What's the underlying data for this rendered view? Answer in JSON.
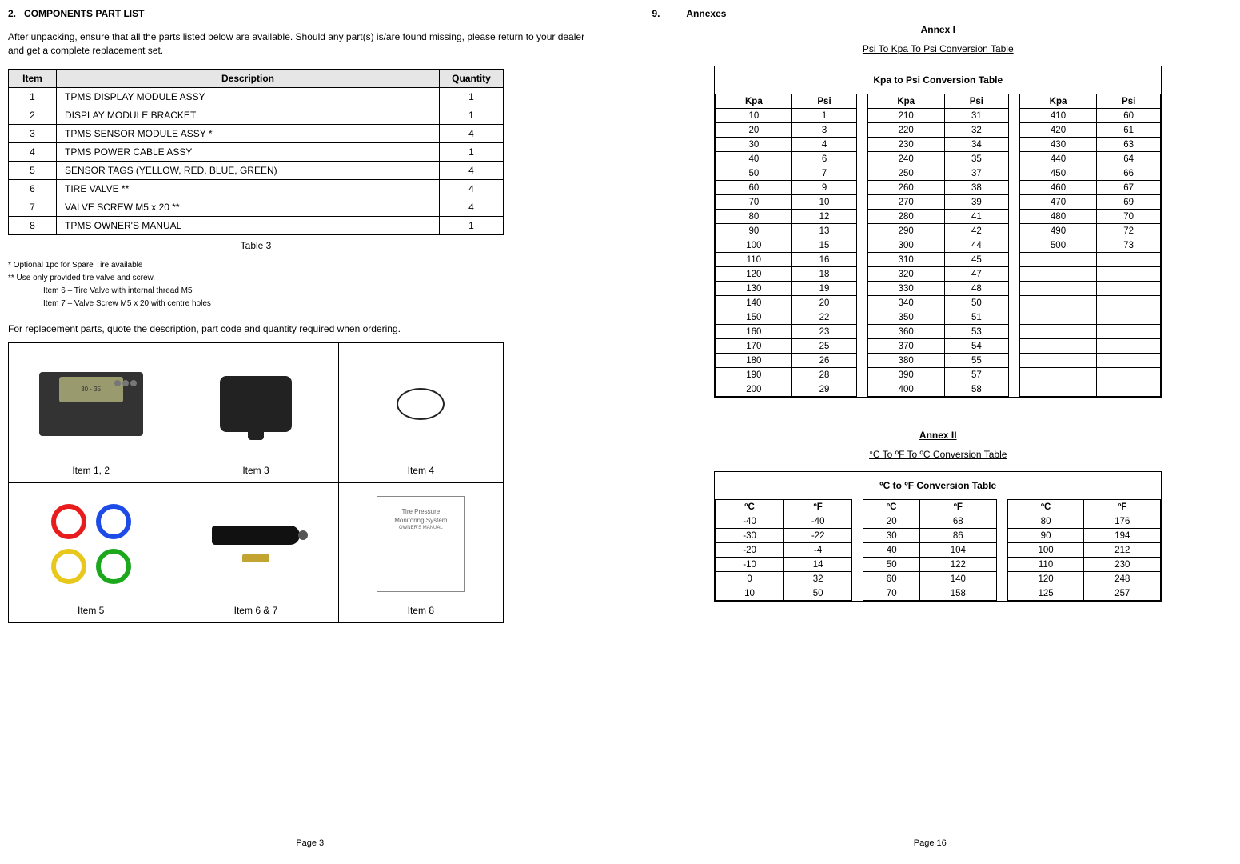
{
  "left": {
    "section_number": "2.",
    "section_title": "COMPONENTS PART LIST",
    "intro": "After unpacking, ensure that all the parts listed below are available. Should any part(s) is/are found missing, please return to your dealer and get a complete replacement set.",
    "parts_table": {
      "headers": {
        "item": "Item",
        "description": "Description",
        "quantity": "Quantity"
      },
      "rows": [
        {
          "item": "1",
          "description": "TPMS DISPLAY MODULE ASSY",
          "quantity": "1"
        },
        {
          "item": "2",
          "description": "DISPLAY MODULE BRACKET",
          "quantity": "1"
        },
        {
          "item": "3",
          "description": "TPMS SENSOR MODULE ASSY *",
          "quantity": "4"
        },
        {
          "item": "4",
          "description": "TPMS POWER CABLE ASSY",
          "quantity": "1"
        },
        {
          "item": "5",
          "description": "SENSOR TAGS (YELLOW, RED, BLUE, GREEN)",
          "quantity": "4"
        },
        {
          "item": "6",
          "description": "TIRE VALVE **",
          "quantity": "4"
        },
        {
          "item": "7",
          "description": "VALVE SCREW M5 x 20 **",
          "quantity": "4"
        },
        {
          "item": "8",
          "description": "TPMS OWNER'S MANUAL",
          "quantity": "1"
        }
      ],
      "caption": "Table 3"
    },
    "footnotes": {
      "f1": "* Optional 1pc for Spare Tire available",
      "f2": "** Use only provided tire valve and screw.",
      "f3": "Item 6 – Tire Valve with internal thread M5",
      "f4": "Item 7 – Valve Screw M5 x 20 with centre holes"
    },
    "order_text": "For replacement parts, quote the description, part code and quantity required when ordering.",
    "image_labels": {
      "i12": "Item 1, 2",
      "i3": "Item 3",
      "i4": "Item 4",
      "i5": "Item 5",
      "i67": "Item 6 & 7",
      "i8": "Item 8"
    },
    "manual_box": {
      "line1": "Tire Pressure",
      "line2": "Monitoring System",
      "line3": "OWNER'S MANUAL"
    },
    "module_screen_text": "30 - 35",
    "page_number": "Page 3"
  },
  "right": {
    "section_number": "9.",
    "section_title": "Annexes",
    "annex1_header": "Annex I",
    "annex1_subtitle": "Psi  To Kpa To Psi Conversion Table",
    "annex1_table_title": "Kpa to Psi Conversion Table",
    "annex1_headers": {
      "kpa": "Kpa",
      "psi": "Psi"
    },
    "annex1_data": {
      "col1": [
        {
          "kpa": "10",
          "psi": "1"
        },
        {
          "kpa": "20",
          "psi": "3"
        },
        {
          "kpa": "30",
          "psi": "4"
        },
        {
          "kpa": "40",
          "psi": "6"
        },
        {
          "kpa": "50",
          "psi": "7"
        },
        {
          "kpa": "60",
          "psi": "9"
        },
        {
          "kpa": "70",
          "psi": "10"
        },
        {
          "kpa": "80",
          "psi": "12"
        },
        {
          "kpa": "90",
          "psi": "13"
        },
        {
          "kpa": "100",
          "psi": "15"
        },
        {
          "kpa": "110",
          "psi": "16"
        },
        {
          "kpa": "120",
          "psi": "18"
        },
        {
          "kpa": "130",
          "psi": "19"
        },
        {
          "kpa": "140",
          "psi": "20"
        },
        {
          "kpa": "150",
          "psi": "22"
        },
        {
          "kpa": "160",
          "psi": "23"
        },
        {
          "kpa": "170",
          "psi": "25"
        },
        {
          "kpa": "180",
          "psi": "26"
        },
        {
          "kpa": "190",
          "psi": "28"
        },
        {
          "kpa": "200",
          "psi": "29"
        }
      ],
      "col2": [
        {
          "kpa": "210",
          "psi": "31"
        },
        {
          "kpa": "220",
          "psi": "32"
        },
        {
          "kpa": "230",
          "psi": "34"
        },
        {
          "kpa": "240",
          "psi": "35"
        },
        {
          "kpa": "250",
          "psi": "37"
        },
        {
          "kpa": "260",
          "psi": "38"
        },
        {
          "kpa": "270",
          "psi": "39"
        },
        {
          "kpa": "280",
          "psi": "41"
        },
        {
          "kpa": "290",
          "psi": "42"
        },
        {
          "kpa": "300",
          "psi": "44"
        },
        {
          "kpa": "310",
          "psi": "45"
        },
        {
          "kpa": "320",
          "psi": "47"
        },
        {
          "kpa": "330",
          "psi": "48"
        },
        {
          "kpa": "340",
          "psi": "50"
        },
        {
          "kpa": "350",
          "psi": "51"
        },
        {
          "kpa": "360",
          "psi": "53"
        },
        {
          "kpa": "370",
          "psi": "54"
        },
        {
          "kpa": "380",
          "psi": "55"
        },
        {
          "kpa": "390",
          "psi": "57"
        },
        {
          "kpa": "400",
          "psi": "58"
        }
      ],
      "col3": [
        {
          "kpa": "410",
          "psi": "60"
        },
        {
          "kpa": "420",
          "psi": "61"
        },
        {
          "kpa": "430",
          "psi": "63"
        },
        {
          "kpa": "440",
          "psi": "64"
        },
        {
          "kpa": "450",
          "psi": "66"
        },
        {
          "kpa": "460",
          "psi": "67"
        },
        {
          "kpa": "470",
          "psi": "69"
        },
        {
          "kpa": "480",
          "psi": "70"
        },
        {
          "kpa": "490",
          "psi": "72"
        },
        {
          "kpa": "500",
          "psi": "73"
        },
        {
          "kpa": "",
          "psi": ""
        },
        {
          "kpa": "",
          "psi": ""
        },
        {
          "kpa": "",
          "psi": ""
        },
        {
          "kpa": "",
          "psi": ""
        },
        {
          "kpa": "",
          "psi": ""
        },
        {
          "kpa": "",
          "psi": ""
        },
        {
          "kpa": "",
          "psi": ""
        },
        {
          "kpa": "",
          "psi": ""
        },
        {
          "kpa": "",
          "psi": ""
        },
        {
          "kpa": "",
          "psi": ""
        }
      ]
    },
    "annex2_header": "Annex II",
    "annex2_subtitle": "°C  To ºF To ºC Conversion Table",
    "annex2_table_title": "ºC to ºF Conversion Table",
    "annex2_headers": {
      "c": "ºC",
      "f": "ºF"
    },
    "annex2_data": {
      "col1": [
        {
          "c": "-40",
          "f": "-40"
        },
        {
          "c": "-30",
          "f": "-22"
        },
        {
          "c": "-20",
          "f": "-4"
        },
        {
          "c": "-10",
          "f": "14"
        },
        {
          "c": "0",
          "f": "32"
        },
        {
          "c": "10",
          "f": "50"
        }
      ],
      "col2": [
        {
          "c": "20",
          "f": "68"
        },
        {
          "c": "30",
          "f": "86"
        },
        {
          "c": "40",
          "f": "104"
        },
        {
          "c": "50",
          "f": "122"
        },
        {
          "c": "60",
          "f": "140"
        },
        {
          "c": "70",
          "f": "158"
        }
      ],
      "col3": [
        {
          "c": "80",
          "f": "176"
        },
        {
          "c": "90",
          "f": "194"
        },
        {
          "c": "100",
          "f": "212"
        },
        {
          "c": "110",
          "f": "230"
        },
        {
          "c": "120",
          "f": "248"
        },
        {
          "c": "125",
          "f": "257"
        }
      ]
    },
    "page_number": "Page 16"
  }
}
